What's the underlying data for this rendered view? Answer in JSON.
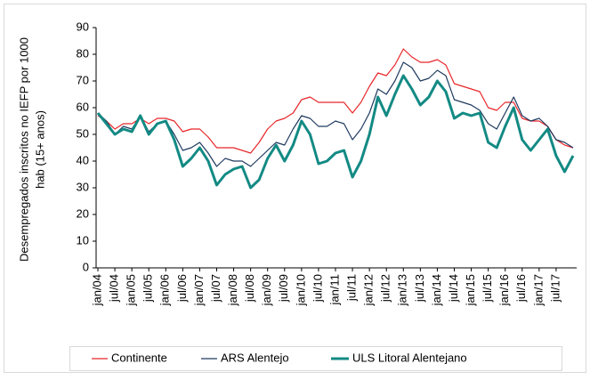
{
  "chart_data": {
    "type": "line",
    "ylabel": [
      "Desempregados inscritos no IEFP por 1000",
      "hab (15+ anos)"
    ],
    "categories": [
      "jan/04",
      null,
      "jul/04",
      null,
      "jan/05",
      null,
      "jul/05",
      null,
      "jan/06",
      null,
      "jul/06",
      null,
      "jan/07",
      null,
      "jul/07",
      null,
      "jan/08",
      null,
      "jul/08",
      null,
      "jan/09",
      null,
      "jul/09",
      null,
      "jan/10",
      null,
      "jul/10",
      null,
      "jan/11",
      null,
      "jul/11",
      null,
      "jan/12",
      null,
      "jul/12",
      null,
      "jan/13",
      null,
      "jul/13",
      null,
      "jan/14",
      null,
      "jul/14",
      null,
      "jan/15",
      null,
      "jul/15",
      null,
      "jan/16",
      null,
      "jul/16",
      null,
      "jan/17",
      null,
      "jul/17",
      null,
      null
    ],
    "series": [
      {
        "name": "Continente",
        "color": "#e8262a",
        "width": 1.2,
        "values": [
          57,
          55,
          52,
          54,
          54,
          56,
          54,
          56,
          56,
          55,
          51,
          52,
          52,
          49,
          45,
          45,
          45,
          44,
          43,
          47,
          52,
          55,
          56,
          58,
          63,
          64,
          62,
          62,
          62,
          62,
          58,
          62,
          68,
          73,
          72,
          76,
          82,
          79,
          77,
          77,
          78,
          76,
          69,
          68,
          67,
          66,
          60,
          59,
          62,
          62,
          56,
          55,
          55,
          53,
          48,
          46,
          45
        ]
      },
      {
        "name": "ARS Alentejo",
        "color": "#1f3a5f",
        "width": 1.2,
        "values": [
          58,
          55,
          50,
          53,
          52,
          57,
          51,
          54,
          55,
          50,
          44,
          45,
          47,
          43,
          38,
          41,
          40,
          40,
          38,
          41,
          44,
          47,
          46,
          52,
          57,
          56,
          53,
          53,
          55,
          54,
          48,
          52,
          58,
          67,
          65,
          70,
          77,
          75,
          70,
          71,
          74,
          72,
          63,
          62,
          61,
          59,
          54,
          52,
          58,
          64,
          57,
          55,
          56,
          53,
          48,
          47,
          45
        ]
      },
      {
        "name": "ULS Litoral Alentejano",
        "color": "#138a84",
        "width": 3,
        "values": [
          58,
          54,
          50,
          52,
          51,
          57,
          50,
          54,
          55,
          48,
          38,
          41,
          45,
          40,
          31,
          35,
          37,
          38,
          30,
          33,
          41,
          46,
          40,
          46,
          55,
          50,
          39,
          40,
          43,
          44,
          34,
          40,
          50,
          64,
          57,
          65,
          72,
          67,
          61,
          64,
          70,
          66,
          56,
          58,
          57,
          58,
          47,
          45,
          53,
          60,
          48,
          44,
          48,
          52,
          42,
          36,
          42
        ]
      }
    ],
    "ylim": [
      0,
      90
    ],
    "yticks": [
      0,
      10,
      20,
      30,
      40,
      50,
      60,
      70,
      80,
      90
    ],
    "grid": false,
    "legend": "bottom"
  }
}
